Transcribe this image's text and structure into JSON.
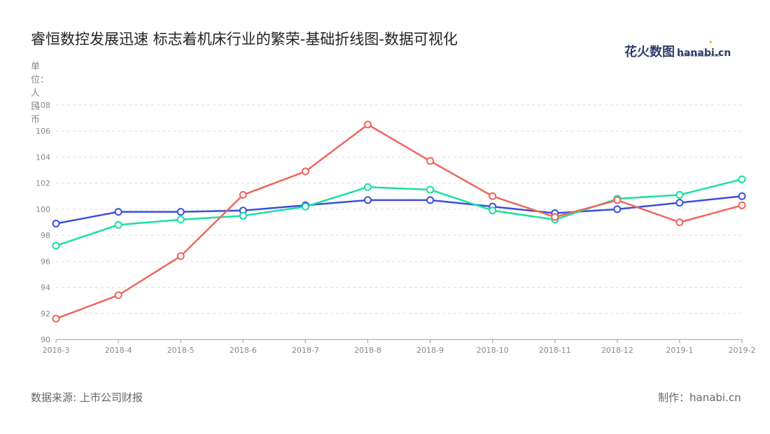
{
  "title": "睿恒数控发展迅速 标志着机床行业的繁荣-基础折线图-数据可视化",
  "logo": {
    "cn": "花火数图",
    "en": "hanabi.cn",
    "sub": "DATA VISUALIZATION"
  },
  "unit_label": "单位：人民币",
  "footer": {
    "source": "数据来源: 上市公司财报",
    "credit": "制作：hanabi.cn"
  },
  "colors": {
    "series1": "#3b4fd8",
    "series2": "#19e0a0",
    "series3": "#f0655a"
  },
  "chart_data": {
    "type": "line",
    "categories": [
      "2018-3",
      "2018-4",
      "2018-5",
      "2018-6",
      "2018-7",
      "2018-8",
      "2018-9",
      "2018-10",
      "2018-11",
      "2018-12",
      "2019-1",
      "2019-2"
    ],
    "ylim": [
      90,
      108
    ],
    "yticks": [
      90,
      92,
      94,
      96,
      98,
      100,
      102,
      104,
      106,
      108
    ],
    "grid": true,
    "series": [
      {
        "values": [
          98.9,
          99.8,
          99.8,
          99.9,
          100.3,
          100.7,
          100.7,
          100.2,
          99.7,
          100.0,
          100.5,
          101.0
        ]
      },
      {
        "values": [
          97.2,
          98.8,
          99.2,
          99.5,
          100.2,
          101.7,
          101.5,
          99.9,
          99.2,
          100.8,
          101.1,
          102.3
        ]
      },
      {
        "values": [
          91.6,
          93.4,
          96.4,
          101.1,
          102.9,
          106.5,
          103.7,
          101.0,
          99.4,
          100.7,
          99.0,
          100.3
        ]
      }
    ]
  }
}
